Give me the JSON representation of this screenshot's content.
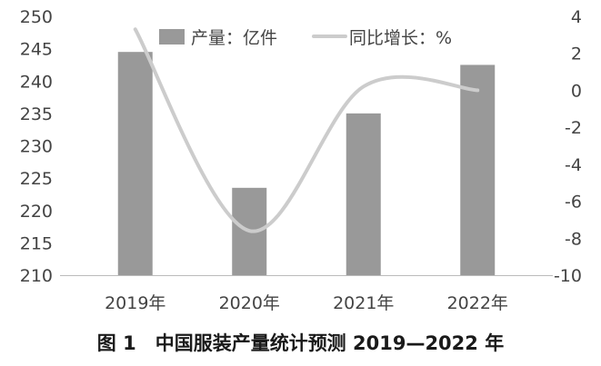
{
  "caption": "图 1　中国服装产量统计预测 2019—2022 年",
  "chart_data": {
    "type": "bar",
    "categories": [
      "2019年",
      "2020年",
      "2021年",
      "2022年"
    ],
    "series": [
      {
        "name": "产量：亿件",
        "type": "bar",
        "axis": "left",
        "color": "#999999",
        "values": [
          244.5,
          223.5,
          235,
          242.5
        ]
      },
      {
        "name": "同比增长：%",
        "type": "line",
        "axis": "right",
        "color": "#cccccc",
        "values": [
          3.3,
          -7.6,
          0.2,
          0
        ]
      }
    ],
    "yleft": {
      "lim": [
        210,
        250
      ],
      "ticks": [
        210,
        215,
        220,
        225,
        230,
        235,
        240,
        245,
        250
      ]
    },
    "yright": {
      "lim": [
        -10,
        4
      ],
      "ticks": [
        -10,
        -8,
        -6,
        -4,
        -2,
        0,
        2,
        4
      ]
    },
    "legend": "top",
    "grid": false
  }
}
